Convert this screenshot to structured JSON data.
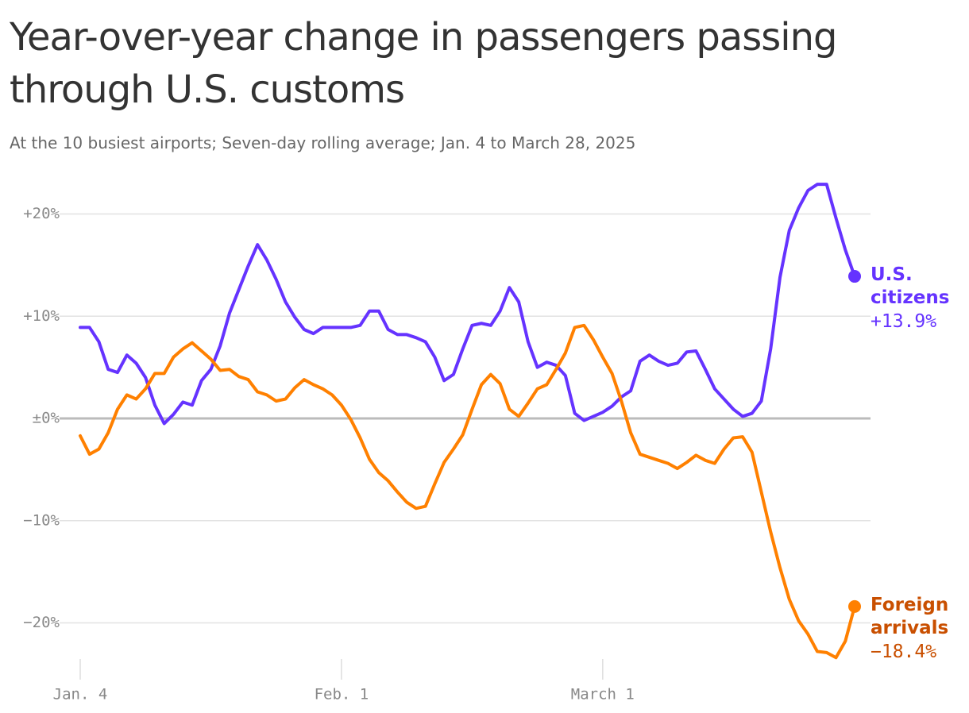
{
  "chart_data": {
    "type": "line",
    "title": "Year-over-year change in passengers passing through U.S. customs",
    "subtitle": "At the 10 busiest airports; Seven-day rolling average; Jan. 4 to March 28, 2025",
    "categories": [
      "Jan. 4",
      null,
      null,
      null,
      null,
      null,
      null,
      null,
      null,
      null,
      null,
      null,
      null,
      null,
      null,
      null,
      null,
      null,
      null,
      null,
      null,
      null,
      null,
      null,
      null,
      null,
      null,
      null,
      "Feb. 1",
      null,
      null,
      null,
      null,
      null,
      null,
      null,
      null,
      null,
      null,
      null,
      null,
      null,
      null,
      null,
      null,
      null,
      null,
      null,
      null,
      null,
      null,
      null,
      null,
      null,
      null,
      null,
      "March 1",
      null,
      null,
      null,
      null,
      null,
      null,
      null,
      null,
      null,
      null,
      null,
      null,
      null,
      null,
      null,
      null,
      null,
      null,
      null,
      null,
      null,
      null,
      null,
      null,
      null,
      null,
      null
    ],
    "ylim": [
      -24,
      24
    ],
    "yticks": [
      {
        "value": 20,
        "label": "+20%"
      },
      {
        "value": 10,
        "label": "+10%"
      },
      {
        "value": 0,
        "label": "±0%"
      },
      {
        "value": -10,
        "label": "−10%"
      },
      {
        "value": -20,
        "label": "−20%"
      }
    ],
    "grid": true,
    "series": [
      {
        "name": "U.S. citizens",
        "color": "#6533ff",
        "label_color": "#6533ff",
        "values": [
          8.9,
          8.9,
          7.5,
          4.8,
          4.5,
          6.2,
          5.4,
          4.0,
          1.3,
          -0.5,
          0.4,
          1.6,
          1.3,
          3.7,
          4.8,
          7.1,
          10.3,
          12.6,
          14.9,
          17.0,
          15.5,
          13.6,
          11.4,
          9.9,
          8.7,
          8.3,
          8.9,
          8.9,
          8.9,
          8.9,
          9.1,
          10.5,
          10.5,
          8.7,
          8.2,
          8.2,
          7.9,
          7.5,
          6.0,
          3.7,
          4.3,
          6.8,
          9.1,
          9.3,
          9.1,
          10.5,
          12.8,
          11.4,
          7.5,
          5.0,
          5.5,
          5.2,
          4.2,
          0.5,
          -0.2,
          0.2,
          0.6,
          1.2,
          2.1,
          2.7,
          5.6,
          6.2,
          5.6,
          5.2,
          5.4,
          6.5,
          6.6,
          4.8,
          2.9,
          1.9,
          0.9,
          0.2,
          0.5,
          1.7,
          6.8,
          13.8,
          18.4,
          20.6,
          22.3,
          22.9,
          22.9,
          19.6,
          16.5,
          13.9
        ],
        "value_labels": [
          null,
          null,
          null,
          null,
          null,
          null,
          null,
          null,
          null,
          null,
          null,
          null,
          null,
          null,
          null,
          null,
          null,
          null,
          null,
          null,
          null,
          null,
          null,
          null,
          null,
          null,
          null,
          null,
          null,
          null,
          null,
          null,
          null,
          null,
          null,
          null,
          null,
          null,
          null,
          null,
          null,
          null,
          null,
          null,
          null,
          null,
          null,
          null,
          null,
          null,
          null,
          null,
          null,
          null,
          null,
          null,
          null,
          null,
          null,
          null,
          null,
          null,
          null,
          null,
          null,
          null,
          null,
          null,
          null,
          null,
          null,
          null,
          null,
          null,
          null,
          null,
          null,
          null,
          null,
          null,
          null,
          null,
          null,
          "+13.9%"
        ]
      },
      {
        "name": "Foreign arrivals",
        "color": "#ff8000",
        "label_color": "#c94f00",
        "values": [
          -1.7,
          -3.5,
          -3.0,
          -1.4,
          0.9,
          2.3,
          1.9,
          2.9,
          4.4,
          4.4,
          6.0,
          6.8,
          7.4,
          6.6,
          5.8,
          4.7,
          4.8,
          4.1,
          3.8,
          2.6,
          2.3,
          1.7,
          1.9,
          3.0,
          3.8,
          3.3,
          2.9,
          2.3,
          1.3,
          -0.1,
          -1.9,
          -4.0,
          -5.3,
          -6.1,
          -7.2,
          -8.2,
          -8.8,
          -8.6,
          -6.4,
          -4.3,
          -3.0,
          -1.6,
          0.9,
          3.3,
          4.3,
          3.4,
          0.9,
          0.2,
          1.5,
          2.9,
          3.3,
          4.8,
          6.4,
          8.9,
          9.1,
          7.7,
          6.0,
          4.4,
          1.7,
          -1.4,
          -3.5,
          -3.8,
          -4.1,
          -4.4,
          -4.9,
          -4.3,
          -3.6,
          -4.1,
          -4.4,
          -3.0,
          -1.9,
          -1.8,
          -3.3,
          -7.2,
          -11.1,
          -14.6,
          -17.7,
          -19.8,
          -21.1,
          -22.8,
          -22.9,
          -23.4,
          -21.8,
          -18.4
        ],
        "value_labels": [
          null,
          null,
          null,
          null,
          null,
          null,
          null,
          null,
          null,
          null,
          null,
          null,
          null,
          null,
          null,
          null,
          null,
          null,
          null,
          null,
          null,
          null,
          null,
          null,
          null,
          null,
          null,
          null,
          null,
          null,
          null,
          null,
          null,
          null,
          null,
          null,
          null,
          null,
          null,
          null,
          null,
          null,
          null,
          null,
          null,
          null,
          null,
          null,
          null,
          null,
          null,
          null,
          null,
          null,
          null,
          null,
          null,
          null,
          null,
          null,
          null,
          null,
          null,
          null,
          null,
          null,
          null,
          null,
          null,
          null,
          null,
          null,
          null,
          null,
          null,
          null,
          null,
          null,
          null,
          null,
          null,
          null,
          null,
          "−18.4%"
        ]
      }
    ]
  }
}
